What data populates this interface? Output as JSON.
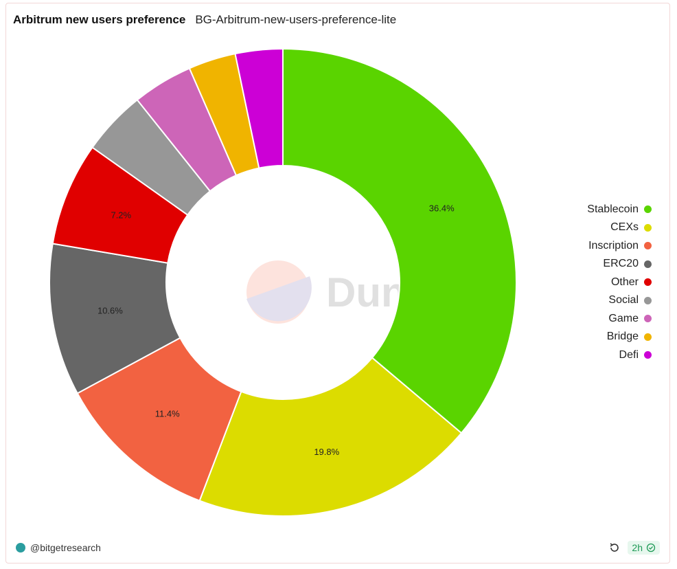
{
  "header": {
    "title": "Arbitrum new users preference",
    "subtitle": "BG-Arbitrum-new-users-preference-lite"
  },
  "watermark": {
    "text": "Dune"
  },
  "chart_data": {
    "type": "pie",
    "title": "Arbitrum new users preference",
    "donut": true,
    "legend_position": "right",
    "slices": [
      {
        "label": "Stablecoin",
        "value": 36.4,
        "color": "#5ad400",
        "data_label": "36.4%"
      },
      {
        "label": "CEXs",
        "value": 19.8,
        "color": "#dcdc00",
        "data_label": "19.8%"
      },
      {
        "label": "Inscription",
        "value": 11.4,
        "color": "#f26241",
        "data_label": "11.4%"
      },
      {
        "label": "ERC20",
        "value": 10.6,
        "color": "#666666",
        "data_label": "10.6%"
      },
      {
        "label": "Other",
        "value": 7.2,
        "color": "#e00000",
        "data_label": "7.2%"
      },
      {
        "label": "Social",
        "value": 4.5,
        "color": "#979797",
        "data_label": ""
      },
      {
        "label": "Game",
        "value": 4.2,
        "color": "#cd65b8",
        "data_label": ""
      },
      {
        "label": "Bridge",
        "value": 3.3,
        "color": "#f0b400",
        "data_label": ""
      },
      {
        "label": "Defi",
        "value": 3.3,
        "color": "#cc00d6",
        "data_label": ""
      }
    ]
  },
  "footer": {
    "author": "@bitgetresearch",
    "age": "2h"
  }
}
